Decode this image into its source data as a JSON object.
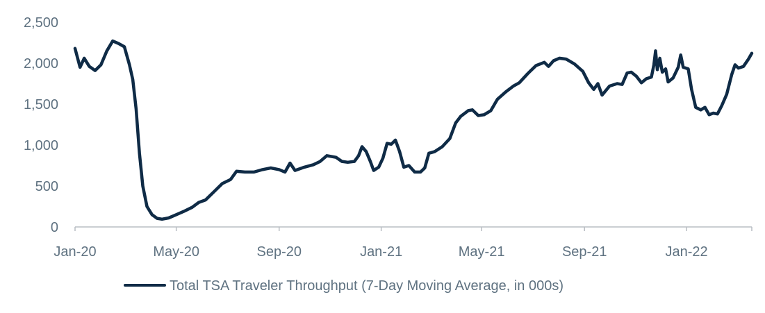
{
  "chart_data": {
    "type": "line",
    "title": "",
    "xlabel": "",
    "ylabel": "",
    "ylim": [
      0,
      2500
    ],
    "xlim": [
      "2020-01-01",
      "2022-03-20"
    ],
    "y_ticks": [
      0,
      500,
      1000,
      1500,
      2000,
      2500
    ],
    "y_tick_labels": [
      "0",
      "500",
      "1,000",
      "1,500",
      "2,000",
      "2,500"
    ],
    "x_ticks": [
      "2020-01-01",
      "2020-05-01",
      "2020-09-01",
      "2021-01-01",
      "2021-05-01",
      "2021-09-01",
      "2022-01-01"
    ],
    "x_tick_labels": [
      "Jan-20",
      "May-20",
      "Sep-20",
      "Jan-21",
      "May-21",
      "Sep-21",
      "Jan-22"
    ],
    "grid": false,
    "legend_position": "bottom",
    "series": [
      {
        "name": "Total TSA Traveler Throughput (7-Day Moving Average, in 000s)",
        "color": "#0f2b46",
        "points": [
          [
            "2020-01-01",
            2180
          ],
          [
            "2020-01-07",
            1950
          ],
          [
            "2020-01-12",
            2060
          ],
          [
            "2020-01-18",
            1960
          ],
          [
            "2020-01-25",
            1910
          ],
          [
            "2020-02-01",
            1980
          ],
          [
            "2020-02-08",
            2150
          ],
          [
            "2020-02-15",
            2270
          ],
          [
            "2020-02-22",
            2240
          ],
          [
            "2020-02-29",
            2200
          ],
          [
            "2020-03-06",
            1980
          ],
          [
            "2020-03-10",
            1800
          ],
          [
            "2020-03-14",
            1440
          ],
          [
            "2020-03-18",
            900
          ],
          [
            "2020-03-22",
            500
          ],
          [
            "2020-03-27",
            250
          ],
          [
            "2020-04-02",
            150
          ],
          [
            "2020-04-08",
            105
          ],
          [
            "2020-04-14",
            95
          ],
          [
            "2020-04-22",
            110
          ],
          [
            "2020-05-01",
            150
          ],
          [
            "2020-05-10",
            190
          ],
          [
            "2020-05-20",
            240
          ],
          [
            "2020-05-28",
            300
          ],
          [
            "2020-06-05",
            330
          ],
          [
            "2020-06-15",
            430
          ],
          [
            "2020-06-25",
            530
          ],
          [
            "2020-07-05",
            580
          ],
          [
            "2020-07-12",
            680
          ],
          [
            "2020-07-22",
            670
          ],
          [
            "2020-08-02",
            670
          ],
          [
            "2020-08-12",
            700
          ],
          [
            "2020-08-22",
            720
          ],
          [
            "2020-09-01",
            700
          ],
          [
            "2020-09-08",
            670
          ],
          [
            "2020-09-14",
            780
          ],
          [
            "2020-09-20",
            690
          ],
          [
            "2020-10-01",
            730
          ],
          [
            "2020-10-12",
            760
          ],
          [
            "2020-10-20",
            800
          ],
          [
            "2020-10-28",
            870
          ],
          [
            "2020-11-08",
            850
          ],
          [
            "2020-11-15",
            800
          ],
          [
            "2020-11-22",
            790
          ],
          [
            "2020-11-30",
            800
          ],
          [
            "2020-12-05",
            870
          ],
          [
            "2020-12-09",
            980
          ],
          [
            "2020-12-14",
            920
          ],
          [
            "2020-12-19",
            800
          ],
          [
            "2020-12-23",
            690
          ],
          [
            "2020-12-29",
            730
          ],
          [
            "2021-01-03",
            840
          ],
          [
            "2021-01-08",
            1020
          ],
          [
            "2021-01-13",
            1010
          ],
          [
            "2021-01-18",
            1060
          ],
          [
            "2021-01-23",
            920
          ],
          [
            "2021-01-28",
            730
          ],
          [
            "2021-02-03",
            750
          ],
          [
            "2021-02-10",
            670
          ],
          [
            "2021-02-17",
            670
          ],
          [
            "2021-02-22",
            720
          ],
          [
            "2021-02-27",
            900
          ],
          [
            "2021-03-06",
            920
          ],
          [
            "2021-03-15",
            980
          ],
          [
            "2021-03-24",
            1080
          ],
          [
            "2021-03-31",
            1270
          ],
          [
            "2021-04-06",
            1350
          ],
          [
            "2021-04-15",
            1420
          ],
          [
            "2021-04-20",
            1430
          ],
          [
            "2021-04-27",
            1360
          ],
          [
            "2021-05-04",
            1370
          ],
          [
            "2021-05-12",
            1420
          ],
          [
            "2021-05-20",
            1560
          ],
          [
            "2021-05-30",
            1650
          ],
          [
            "2021-06-08",
            1720
          ],
          [
            "2021-06-15",
            1760
          ],
          [
            "2021-06-25",
            1870
          ],
          [
            "2021-07-05",
            1970
          ],
          [
            "2021-07-15",
            2010
          ],
          [
            "2021-07-20",
            1960
          ],
          [
            "2021-07-26",
            2030
          ],
          [
            "2021-08-02",
            2060
          ],
          [
            "2021-08-10",
            2050
          ],
          [
            "2021-08-20",
            1990
          ],
          [
            "2021-08-30",
            1900
          ],
          [
            "2021-09-06",
            1760
          ],
          [
            "2021-09-12",
            1680
          ],
          [
            "2021-09-17",
            1750
          ],
          [
            "2021-09-22",
            1610
          ],
          [
            "2021-10-01",
            1720
          ],
          [
            "2021-10-10",
            1750
          ],
          [
            "2021-10-16",
            1740
          ],
          [
            "2021-10-22",
            1880
          ],
          [
            "2021-10-27",
            1890
          ],
          [
            "2021-11-02",
            1840
          ],
          [
            "2021-11-08",
            1760
          ],
          [
            "2021-11-14",
            1810
          ],
          [
            "2021-11-20",
            1830
          ],
          [
            "2021-11-23",
            1980
          ],
          [
            "2021-11-25",
            2150
          ],
          [
            "2021-11-27",
            1920
          ],
          [
            "2021-11-30",
            2060
          ],
          [
            "2021-12-03",
            1890
          ],
          [
            "2021-12-07",
            1930
          ],
          [
            "2021-12-10",
            1770
          ],
          [
            "2021-12-16",
            1820
          ],
          [
            "2021-12-22",
            1950
          ],
          [
            "2021-12-25",
            2100
          ],
          [
            "2021-12-28",
            1950
          ],
          [
            "2022-01-03",
            1930
          ],
          [
            "2022-01-07",
            1680
          ],
          [
            "2022-01-12",
            1460
          ],
          [
            "2022-01-18",
            1430
          ],
          [
            "2022-01-23",
            1460
          ],
          [
            "2022-01-28",
            1370
          ],
          [
            "2022-02-02",
            1390
          ],
          [
            "2022-02-07",
            1380
          ],
          [
            "2022-02-12",
            1480
          ],
          [
            "2022-02-18",
            1620
          ],
          [
            "2022-02-24",
            1860
          ],
          [
            "2022-02-28",
            1980
          ],
          [
            "2022-03-04",
            1940
          ],
          [
            "2022-03-10",
            1960
          ],
          [
            "2022-03-16",
            2050
          ],
          [
            "2022-03-20",
            2120
          ]
        ]
      }
    ]
  }
}
